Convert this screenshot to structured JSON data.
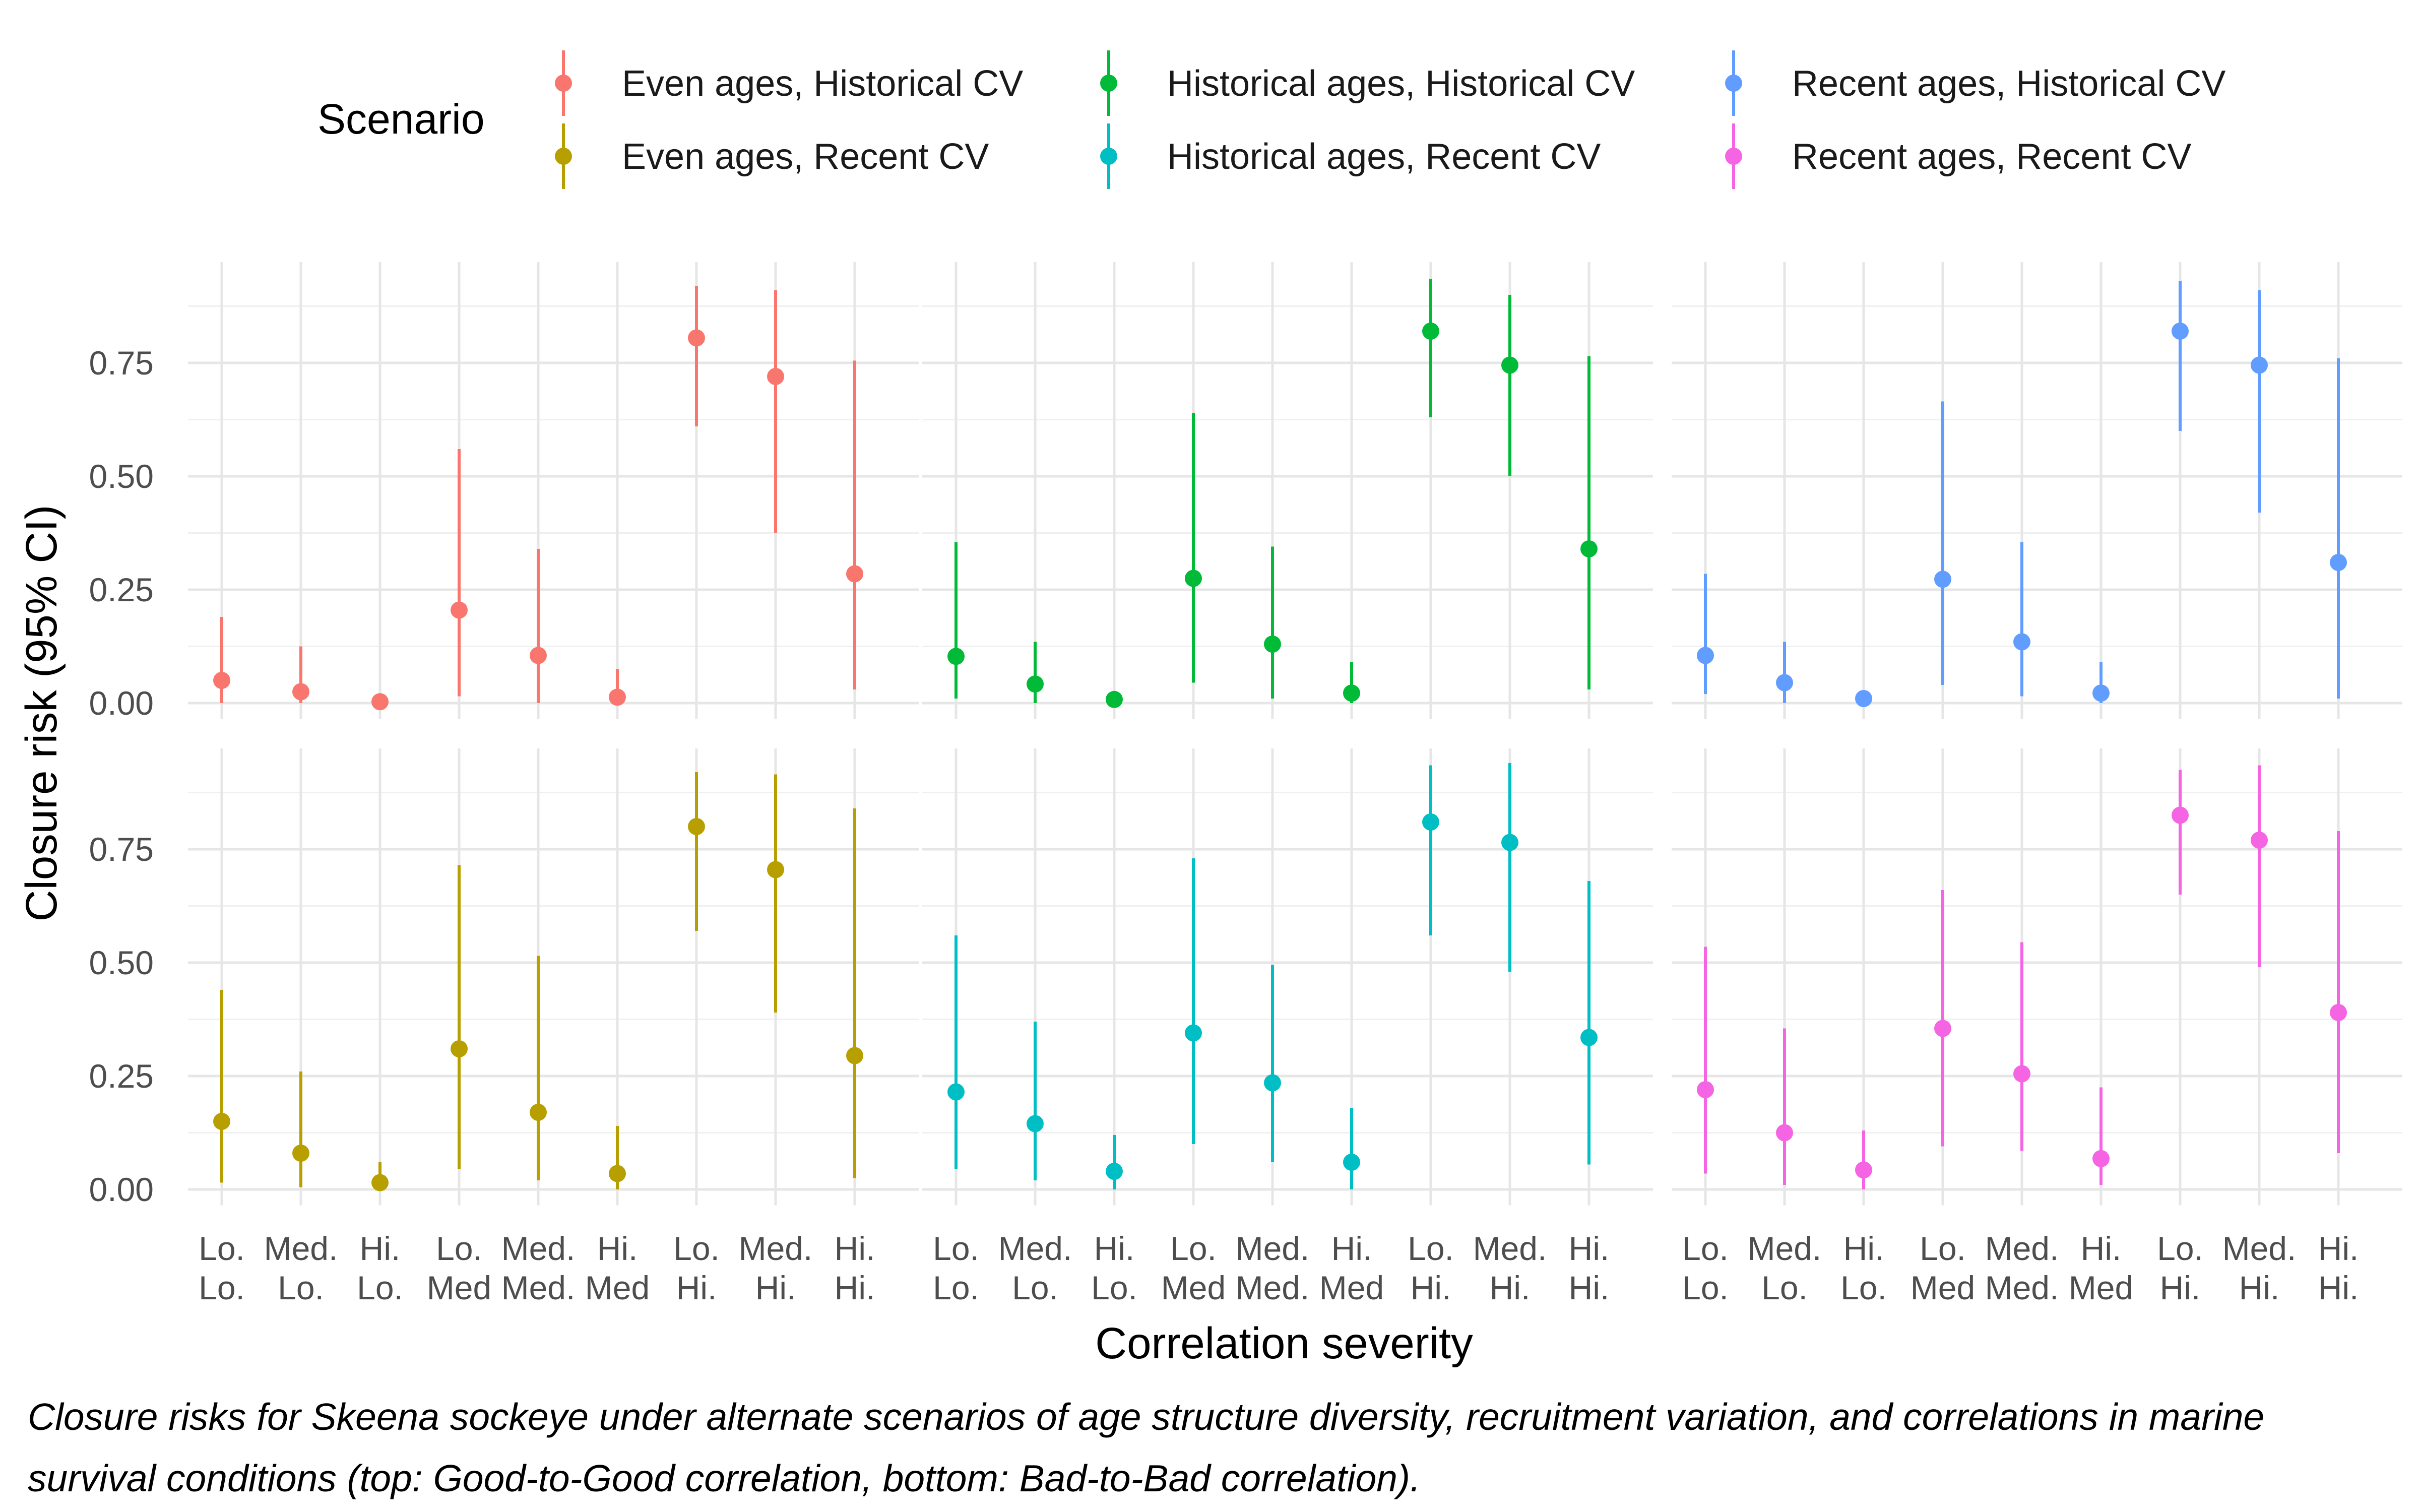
{
  "legend": {
    "title": "Scenario",
    "entries": [
      {
        "name": "Even ages, Historical CV",
        "color": "#F8766D"
      },
      {
        "name": "Even ages, Recent CV",
        "color": "#B79F00"
      },
      {
        "name": "Historical ages, Historical CV",
        "color": "#00BA38"
      },
      {
        "name": "Historical ages, Recent CV",
        "color": "#00BFC4"
      },
      {
        "name": "Recent ages, Historical CV",
        "color": "#619CFF"
      },
      {
        "name": "Recent ages, Recent CV",
        "color": "#F564E3"
      }
    ]
  },
  "axes": {
    "xlabel": "Correlation severity",
    "ylabel": "Closure risk (95% CI)",
    "ylim": [
      0,
      0.95
    ],
    "yticks": [
      "0.00",
      "0.25",
      "0.50",
      "0.75"
    ]
  },
  "caption": "Closure risks for Skeena sockeye under alternate scenarios of age structure diversity, recruitment variation, and correlations in marine survival conditions (top: Good-to-Good correlation, bottom: Bad-to-Bad correlation).",
  "chart_data": {
    "type": "scatter",
    "layout": "2 rows x 3 columns of panels; error bars show 95% CI",
    "categories": [
      [
        "Lo.",
        "Lo."
      ],
      [
        "Med.",
        "Lo."
      ],
      [
        "Hi.",
        "Lo."
      ],
      [
        "Lo.",
        "Med"
      ],
      [
        "Med.",
        "Med."
      ],
      [
        "Hi.",
        "Med"
      ],
      [
        "Lo.",
        "Hi."
      ],
      [
        "Med.",
        "Hi."
      ],
      [
        "Hi.",
        "Hi."
      ]
    ],
    "grid": true,
    "legend_position": "top",
    "panels": [
      {
        "series": "Even ages, Historical CV",
        "row": 0,
        "col": 0,
        "values": [
          0.05,
          0.025,
          0.003,
          0.205,
          0.105,
          0.013,
          0.805,
          0.72,
          0.285
        ],
        "lower": [
          0.0,
          0.0,
          0.0,
          0.015,
          0.0,
          0.0,
          0.61,
          0.375,
          0.03
        ],
        "upper": [
          0.19,
          0.125,
          0.01,
          0.56,
          0.34,
          0.075,
          0.92,
          0.91,
          0.755
        ]
      },
      {
        "series": "Historical ages, Historical CV",
        "row": 0,
        "col": 1,
        "values": [
          0.103,
          0.042,
          0.008,
          0.275,
          0.13,
          0.022,
          0.82,
          0.745,
          0.34
        ],
        "lower": [
          0.01,
          0.0,
          0.0,
          0.045,
          0.01,
          0.0,
          0.63,
          0.5,
          0.03
        ],
        "upper": [
          0.355,
          0.135,
          0.02,
          0.64,
          0.345,
          0.09,
          0.935,
          0.9,
          0.765
        ]
      },
      {
        "series": "Recent ages, Historical CV",
        "row": 0,
        "col": 2,
        "values": [
          0.105,
          0.045,
          0.01,
          0.273,
          0.135,
          0.022,
          0.82,
          0.745,
          0.31
        ],
        "lower": [
          0.02,
          0.0,
          0.0,
          0.04,
          0.015,
          0.0,
          0.6,
          0.42,
          0.01
        ],
        "upper": [
          0.285,
          0.135,
          0.025,
          0.665,
          0.355,
          0.09,
          0.93,
          0.91,
          0.76
        ]
      },
      {
        "series": "Even ages, Recent CV",
        "row": 1,
        "col": 0,
        "values": [
          0.15,
          0.08,
          0.015,
          0.31,
          0.17,
          0.035,
          0.8,
          0.705,
          0.295
        ],
        "lower": [
          0.015,
          0.005,
          0.0,
          0.045,
          0.02,
          0.0,
          0.57,
          0.39,
          0.025
        ],
        "upper": [
          0.44,
          0.26,
          0.06,
          0.715,
          0.515,
          0.14,
          0.92,
          0.915,
          0.84
        ]
      },
      {
        "series": "Historical ages, Recent CV",
        "row": 1,
        "col": 1,
        "values": [
          0.215,
          0.145,
          0.04,
          0.345,
          0.235,
          0.06,
          0.81,
          0.765,
          0.335
        ],
        "lower": [
          0.045,
          0.02,
          0.0,
          0.1,
          0.06,
          0.0,
          0.56,
          0.48,
          0.055
        ],
        "upper": [
          0.56,
          0.37,
          0.12,
          0.73,
          0.495,
          0.18,
          0.935,
          0.94,
          0.68
        ]
      },
      {
        "series": "Recent ages, Recent CV",
        "row": 1,
        "col": 2,
        "values": [
          0.22,
          0.125,
          0.043,
          0.355,
          0.255,
          0.068,
          0.825,
          0.77,
          0.39
        ],
        "lower": [
          0.035,
          0.01,
          0.0,
          0.095,
          0.085,
          0.01,
          0.65,
          0.49,
          0.08
        ],
        "upper": [
          0.535,
          0.355,
          0.13,
          0.66,
          0.545,
          0.225,
          0.925,
          0.935,
          0.79
        ]
      }
    ]
  }
}
